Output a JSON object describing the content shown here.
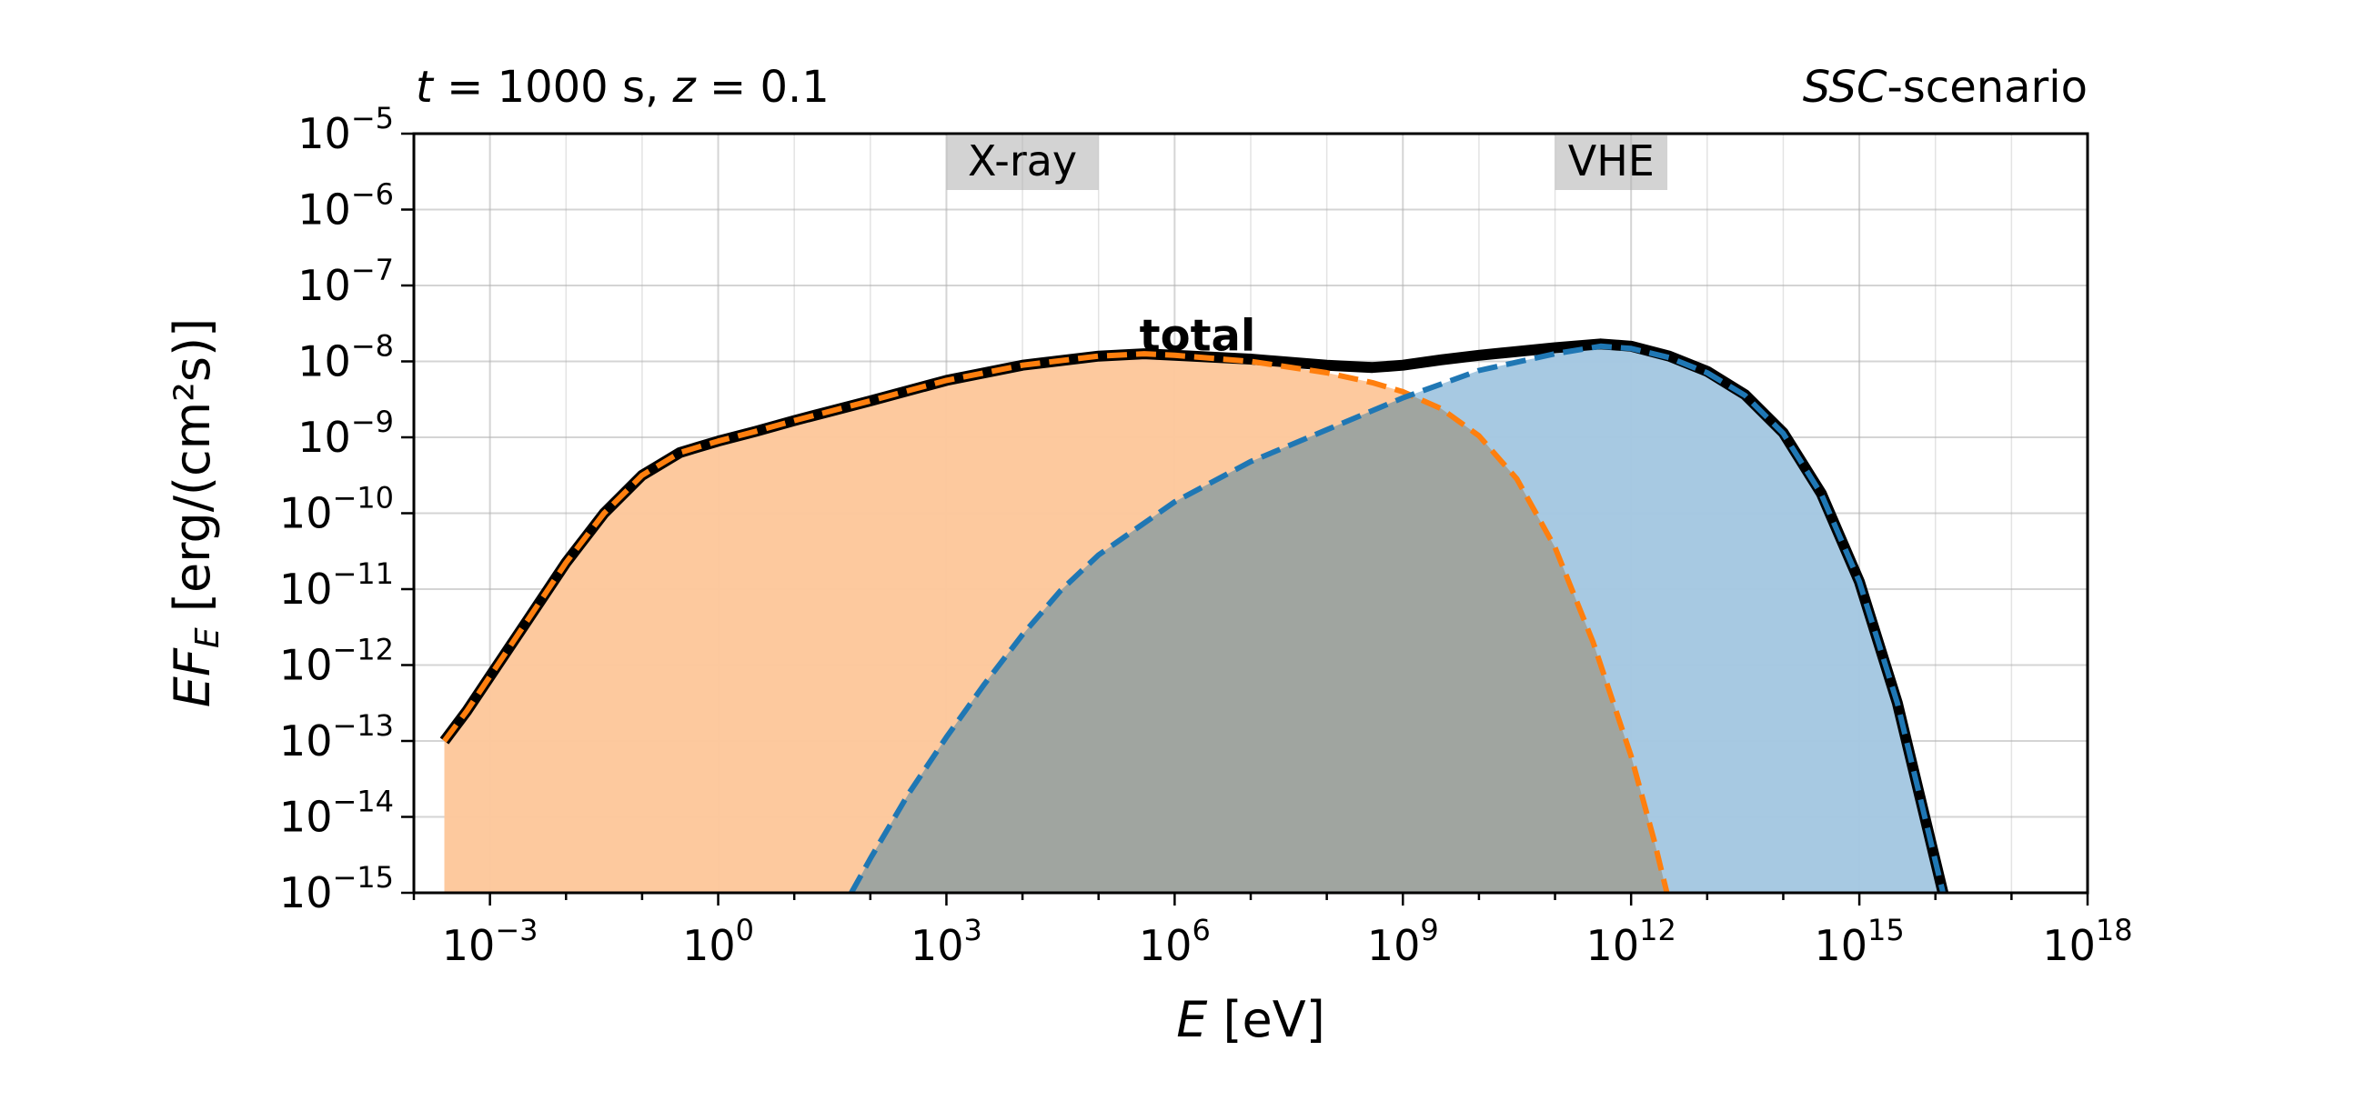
{
  "chart_data": {
    "type": "area",
    "title_left": {
      "t_var": "t",
      "t_rest": " = 1000 s, ",
      "z_var": "z",
      "z_rest": " = 0.1"
    },
    "title_right": {
      "italic": "SSC",
      "rest": "-scenario"
    },
    "xlabel": {
      "var": "E",
      "rest": " [eV]"
    },
    "ylabel": {
      "var": "EF",
      "sub": "E",
      "rest": " [erg/(cm²s)]"
    },
    "xscale": "log",
    "yscale": "log",
    "xlim": [
      0.0001,
      1e+18
    ],
    "ylim": [
      1e-15,
      1e-05
    ],
    "grid": true,
    "x_ticks": [
      {
        "base": "10",
        "exp": "−3",
        "value": 0.001
      },
      {
        "base": "10",
        "exp": "0",
        "value": 1
      },
      {
        "base": "10",
        "exp": "3",
        "value": 1000
      },
      {
        "base": "10",
        "exp": "6",
        "value": 1000000.0
      },
      {
        "base": "10",
        "exp": "9",
        "value": 1000000000.0
      },
      {
        "base": "10",
        "exp": "12",
        "value": 1000000000000.0
      },
      {
        "base": "10",
        "exp": "15",
        "value": 1000000000000000.0
      },
      {
        "base": "10",
        "exp": "18",
        "value": 1e+18
      }
    ],
    "y_ticks": [
      {
        "base": "10",
        "exp": "−5",
        "value": 1e-05
      },
      {
        "base": "10",
        "exp": "−6",
        "value": 1e-06
      },
      {
        "base": "10",
        "exp": "−7",
        "value": 1e-07
      },
      {
        "base": "10",
        "exp": "−8",
        "value": 1e-08
      },
      {
        "base": "10",
        "exp": "−9",
        "value": 1e-09
      },
      {
        "base": "10",
        "exp": "−10",
        "value": 1e-10
      },
      {
        "base": "10",
        "exp": "−11",
        "value": 1e-11
      },
      {
        "base": "10",
        "exp": "−12",
        "value": 1e-12
      },
      {
        "base": "10",
        "exp": "−13",
        "value": 1e-13
      },
      {
        "base": "10",
        "exp": "−14",
        "value": 1e-14
      },
      {
        "base": "10",
        "exp": "−15",
        "value": 1e-15
      }
    ],
    "bands": [
      {
        "label": "X-ray",
        "x_range": [
          1000,
          100000
        ]
      },
      {
        "label": "VHE",
        "x_range": [
          100000000000.0,
          3000000000000.0
        ]
      }
    ],
    "annotations": [
      {
        "text": "total",
        "x": 2000000.0,
        "y": 1.4e-08
      }
    ],
    "series": [
      {
        "id": "synchrotron",
        "color": "#ff7f0e",
        "fill_color": "#fdc89c",
        "style": "dashed",
        "filled": true,
        "points": [
          [
            -3.6,
            -13.0
          ],
          [
            -3.3,
            -12.6
          ],
          [
            -3.0,
            -12.15
          ],
          [
            -2.5,
            -11.4
          ],
          [
            -2.0,
            -10.65
          ],
          [
            -1.5,
            -10.0
          ],
          [
            -1.0,
            -9.5
          ],
          [
            -0.5,
            -9.2
          ],
          [
            0.0,
            -9.05
          ],
          [
            0.5,
            -8.92
          ],
          [
            1.0,
            -8.78
          ],
          [
            2.0,
            -8.52
          ],
          [
            3.0,
            -8.25
          ],
          [
            4.0,
            -8.05
          ],
          [
            5.0,
            -7.93
          ],
          [
            5.6,
            -7.9
          ],
          [
            6.0,
            -7.92
          ],
          [
            7.0,
            -8.0
          ],
          [
            8.0,
            -8.15
          ],
          [
            8.6,
            -8.28
          ],
          [
            9.0,
            -8.4
          ],
          [
            9.5,
            -8.62
          ],
          [
            10.0,
            -8.98
          ],
          [
            10.5,
            -9.55
          ],
          [
            11.0,
            -10.45
          ],
          [
            11.5,
            -11.7
          ],
          [
            12.0,
            -13.2
          ],
          [
            12.3,
            -14.3
          ],
          [
            12.47,
            -15.0
          ]
        ]
      },
      {
        "id": "ssc",
        "color": "#1f77b4",
        "fill_color": "#a5c8e1",
        "style": "dashed",
        "filled": true,
        "points": [
          [
            1.75,
            -15.0
          ],
          [
            2.0,
            -14.55
          ],
          [
            2.5,
            -13.7
          ],
          [
            3.0,
            -12.95
          ],
          [
            3.5,
            -12.25
          ],
          [
            4.0,
            -11.6
          ],
          [
            4.5,
            -11.02
          ],
          [
            5.0,
            -10.55
          ],
          [
            6.0,
            -9.85
          ],
          [
            7.0,
            -9.32
          ],
          [
            8.0,
            -8.9
          ],
          [
            9.0,
            -8.48
          ],
          [
            10.0,
            -8.12
          ],
          [
            11.0,
            -7.9
          ],
          [
            11.6,
            -7.8
          ],
          [
            12.0,
            -7.83
          ],
          [
            12.5,
            -7.95
          ],
          [
            13.0,
            -8.15
          ],
          [
            13.5,
            -8.45
          ],
          [
            14.0,
            -8.95
          ],
          [
            14.5,
            -9.75
          ],
          [
            15.0,
            -10.9
          ],
          [
            15.5,
            -12.5
          ],
          [
            15.8,
            -13.75
          ],
          [
            16.1,
            -15.0
          ]
        ]
      },
      {
        "id": "total",
        "color": "#000000",
        "style": "solid",
        "filled": false,
        "points": [
          [
            -3.6,
            -13.0
          ],
          [
            -3.3,
            -12.6
          ],
          [
            -3.0,
            -12.15
          ],
          [
            -2.5,
            -11.4
          ],
          [
            -2.0,
            -10.65
          ],
          [
            -1.5,
            -10.0
          ],
          [
            -1.0,
            -9.5
          ],
          [
            -0.5,
            -9.2
          ],
          [
            0.0,
            -9.05
          ],
          [
            0.5,
            -8.92
          ],
          [
            1.0,
            -8.78
          ],
          [
            2.0,
            -8.52
          ],
          [
            3.0,
            -8.25
          ],
          [
            4.0,
            -8.05
          ],
          [
            5.0,
            -7.93
          ],
          [
            5.6,
            -7.9
          ],
          [
            6.0,
            -7.92
          ],
          [
            7.0,
            -7.97
          ],
          [
            8.0,
            -8.05
          ],
          [
            8.6,
            -8.08
          ],
          [
            9.0,
            -8.05
          ],
          [
            9.5,
            -7.98
          ],
          [
            10.0,
            -7.92
          ],
          [
            11.0,
            -7.82
          ],
          [
            11.6,
            -7.77
          ],
          [
            12.0,
            -7.8
          ],
          [
            12.5,
            -7.93
          ],
          [
            13.0,
            -8.13
          ],
          [
            13.5,
            -8.44
          ],
          [
            14.0,
            -8.94
          ],
          [
            14.5,
            -9.74
          ],
          [
            15.0,
            -10.9
          ],
          [
            15.5,
            -12.5
          ],
          [
            15.8,
            -13.75
          ],
          [
            16.1,
            -15.0
          ]
        ]
      }
    ]
  }
}
